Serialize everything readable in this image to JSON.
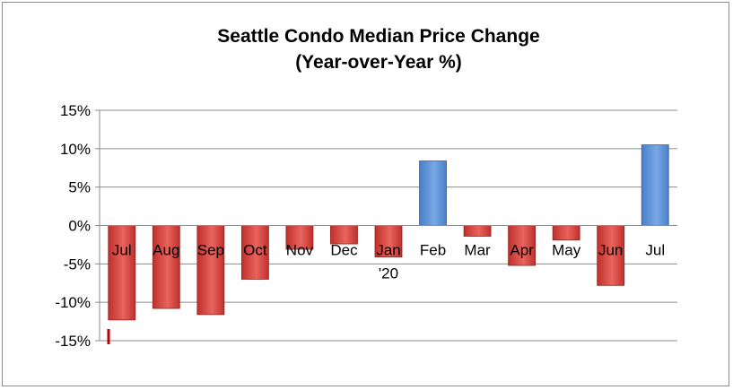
{
  "chart_data": {
    "type": "bar",
    "title": "Seattle Condo Median Price Change",
    "subtitle": "(Year-over-Year %)",
    "categories": [
      "Jul",
      "Aug",
      "Sep",
      "Oct",
      "Nov",
      "Dec",
      "Jan",
      "Feb",
      "Mar",
      "Apr",
      "May",
      "Jun",
      "Jul"
    ],
    "category_sublabels": [
      "",
      "",
      "",
      "",
      "",
      "",
      "'20",
      "",
      "",
      "",
      "",
      "",
      ""
    ],
    "values": [
      -12.3,
      -10.8,
      -11.6,
      -7.0,
      -3.1,
      -2.4,
      -4.1,
      8.4,
      -1.4,
      -5.2,
      -1.9,
      -7.8,
      10.5
    ],
    "ylim": [
      -15,
      15
    ],
    "yticks": [
      15,
      10,
      5,
      0,
      -5,
      -10,
      -15
    ],
    "ytick_labels": [
      "15%",
      "10%",
      "5%",
      "0%",
      "-5%",
      "-10%",
      "-15%"
    ],
    "grid": true,
    "legend": "none",
    "colors": {
      "negative": "#c0302c",
      "negative_light": "#e8645d",
      "positive": "#4a7fc8",
      "positive_light": "#79a7e6",
      "grid": "#8c8c8c",
      "marker": "#c00000"
    }
  }
}
